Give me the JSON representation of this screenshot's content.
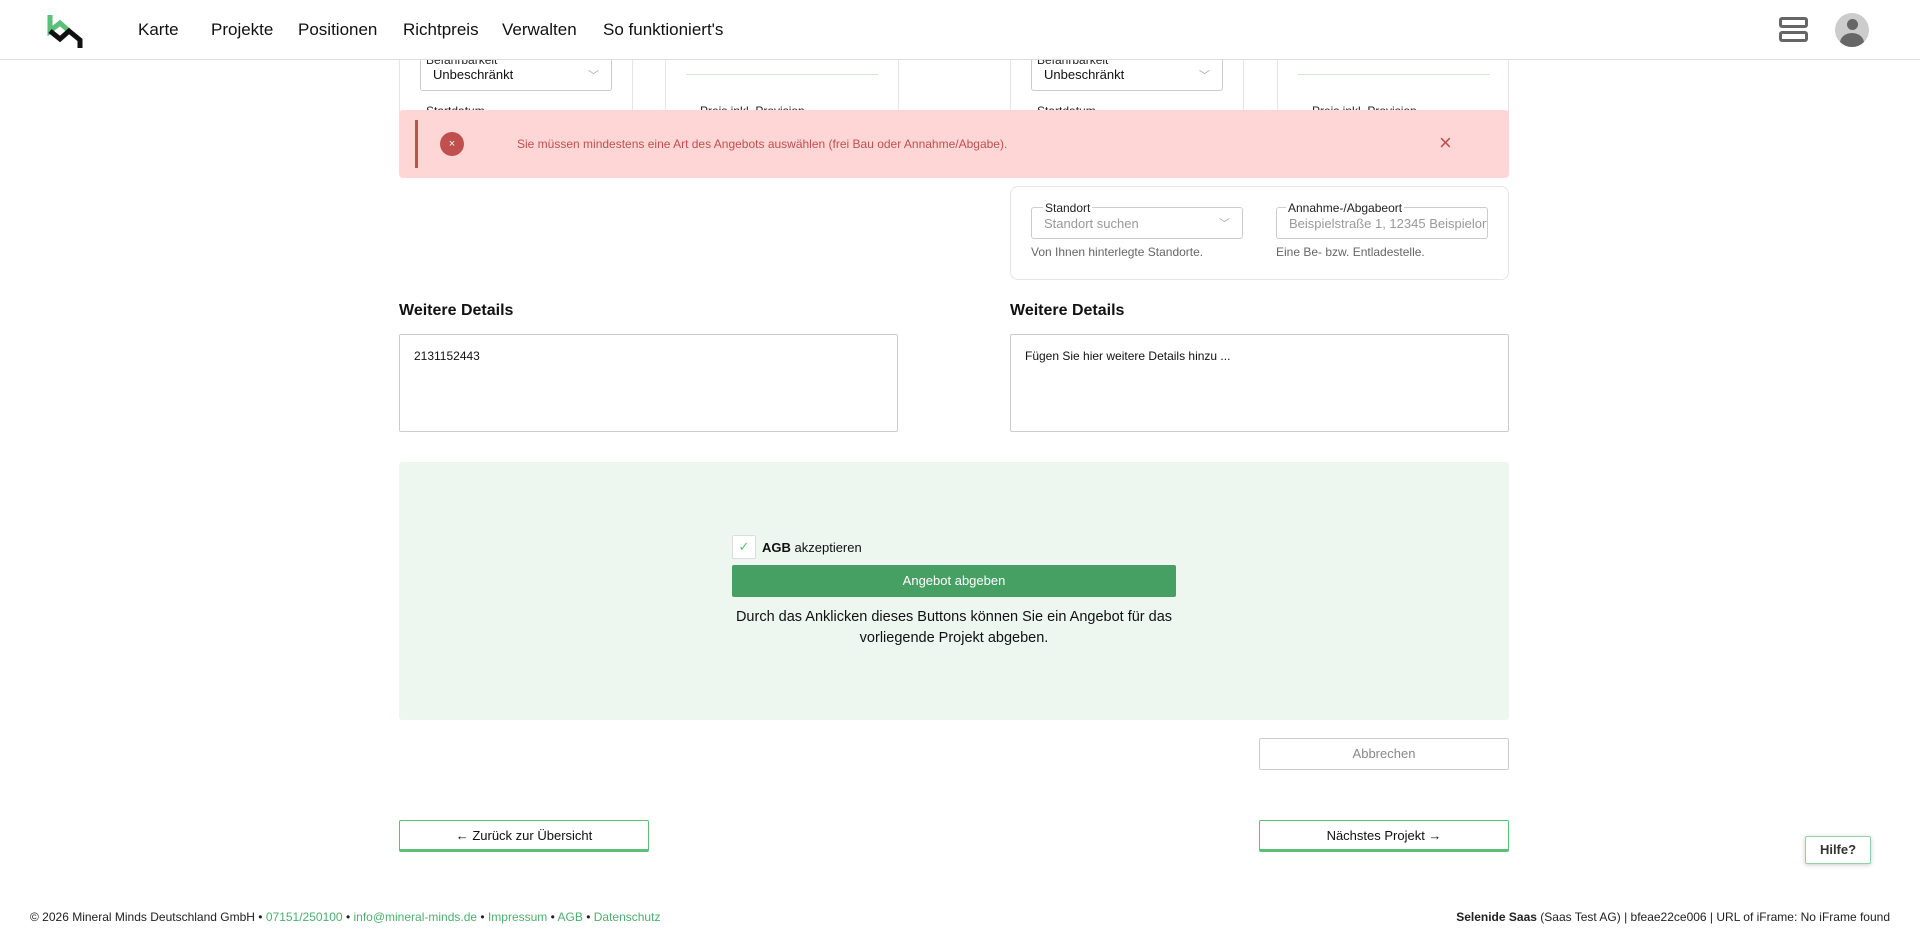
{
  "header": {
    "nav": [
      "Karte",
      "Projekte",
      "Positionen",
      "Richtpreis",
      "Verwalten",
      "So funktioniert's"
    ],
    "icons": {
      "logo": "mineral-minds-logo",
      "server": "server-icon",
      "avatar": "user-avatar-icon"
    },
    "logo_colors": {
      "green": "#5bbf7a",
      "black": "#111111"
    }
  },
  "top_cards": {
    "left": {
      "field_label": "Befahrbarkeit",
      "field_value": "Unbeschränkt",
      "start_label": "Startdatum",
      "price_label": "Preis inkl. Provision"
    },
    "right": {
      "field_label": "Befahrbarkeit",
      "field_value": "Unbeschränkt",
      "start_label": "Startdatum",
      "price_label": "Preis inkl. Provision"
    }
  },
  "alert": {
    "message": "Sie müssen mindestens eine Art des Angebots auswählen (frei Bau oder Annahme/Abgabe).",
    "background": "#ffd6d6",
    "color": "#c0504d"
  },
  "location": {
    "standort_label": "Standort",
    "standort_placeholder": "Standort suchen",
    "standort_hint": "Von Ihnen hinterlegte Standorte.",
    "annahme_label": "Annahme-/Abgabeort",
    "annahme_placeholder": "Beispielstraße 1, 12345 Beispielort",
    "annahme_hint": "Eine Be- bzw. Entladestelle."
  },
  "details": {
    "left": {
      "title": "Weitere Details",
      "value": "2131152443"
    },
    "right": {
      "title": "Weitere Details",
      "placeholder": "Fügen Sie hier weitere Details hinzu ..."
    }
  },
  "submit": {
    "agb_link": "AGB",
    "agb_text": "akzeptieren",
    "agb_checked": true,
    "button": "Angebot abgeben",
    "description": "Durch das Anklicken dieses Buttons können Sie ein Angebot für das vorliegende Projekt abgeben.",
    "accent": "#46a064",
    "panel_bg": "#edf7f0"
  },
  "cancel": "Abbrechen",
  "back": "← Zurück zur Übersicht",
  "next": "Nächstes Projekt →",
  "help": "Hilfe?",
  "footer": {
    "copyright": "© 2026 Mineral Minds Deutschland GmbH",
    "phone": "07151/250100",
    "email": "info@mineral-minds.de",
    "impressum": "Impressum",
    "agb": "AGB",
    "datenschutz": "Datenschutz",
    "sep": "•",
    "right_bold": "Selenide Saas",
    "right_text": "(Saas Test AG) | bfeae22ce006 | URL of iFrame: No iFrame found"
  }
}
